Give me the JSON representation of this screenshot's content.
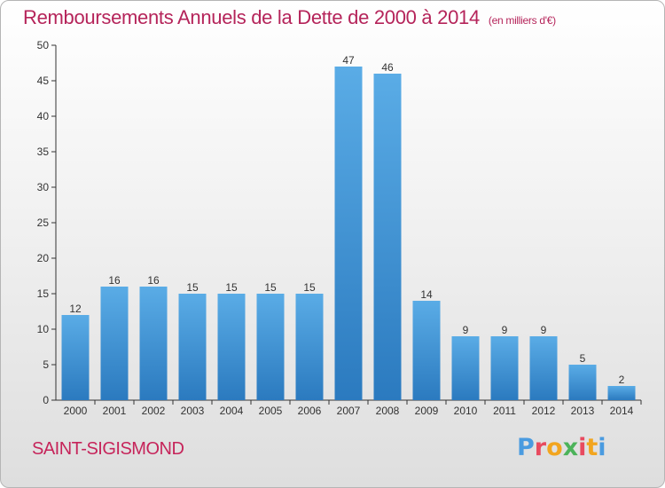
{
  "header": {
    "title": "Remboursements Annuels de la Dette de 2000 à 2014",
    "unit": "(en milliers d'€)"
  },
  "footer": {
    "commune": "SAINT-SIGISMOND",
    "logo": "Proxiti"
  },
  "colors": {
    "title": "#b5245a",
    "bar_top": "#5aace6",
    "bar_bottom": "#2b7abf",
    "logo_letters": [
      "#4a9be0",
      "#e84a5f",
      "#f2a51f",
      "#4cb35a",
      "#e84a5f",
      "#f2a51f",
      "#4a9be0"
    ]
  },
  "chart_data": {
    "type": "bar",
    "title": "Remboursements Annuels de la Dette de 2000 à 2014",
    "subtitle": "(en milliers d'€)",
    "categories": [
      "2000",
      "2001",
      "2002",
      "2003",
      "2004",
      "2005",
      "2006",
      "2007",
      "2008",
      "2009",
      "2010",
      "2011",
      "2012",
      "2013",
      "2014"
    ],
    "values": [
      12,
      16,
      16,
      15,
      15,
      15,
      15,
      47,
      46,
      14,
      9,
      9,
      9,
      5,
      2
    ],
    "ylim": [
      0,
      50
    ],
    "yticks": [
      0,
      5,
      10,
      15,
      20,
      25,
      30,
      35,
      40,
      45,
      50
    ],
    "grid": false,
    "legend": "none"
  }
}
